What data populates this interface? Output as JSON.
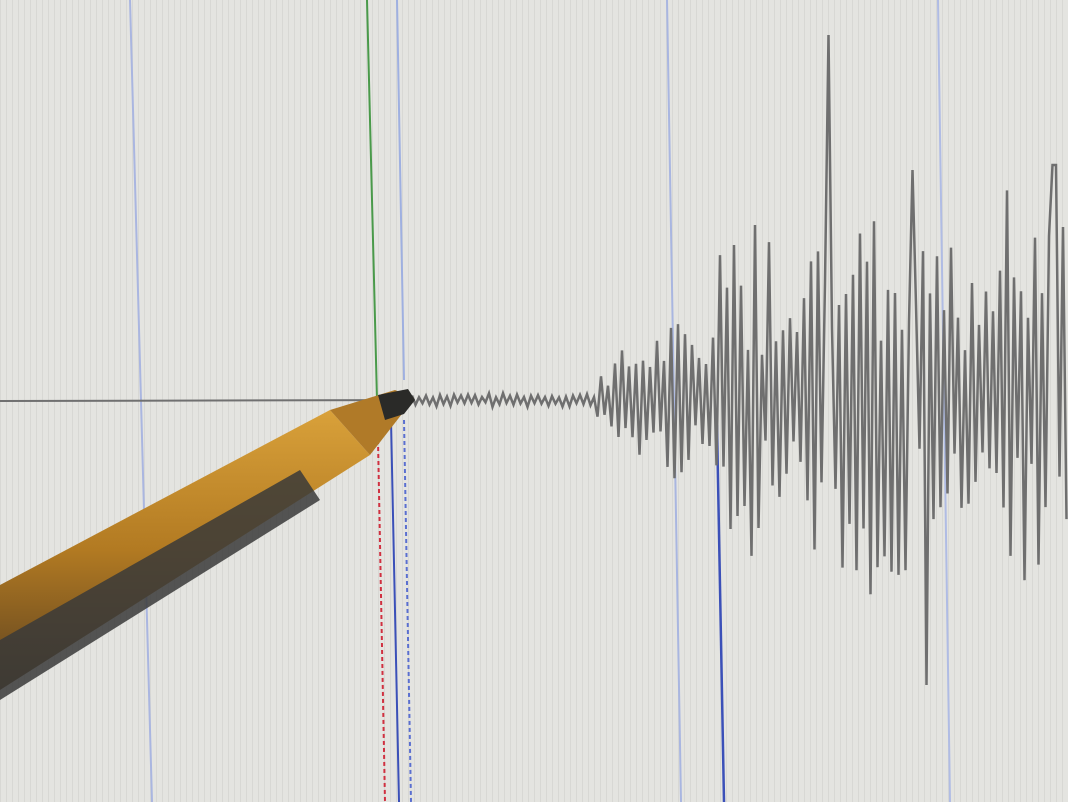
{
  "scene": {
    "subject": "seismograph-screen-with-pencil",
    "colors": {
      "background": "#e3e3df",
      "stripe": "#d6d6d2",
      "trace": "#6f6f6f",
      "baseline": "#707070",
      "marker_light_blue": "#a9b6e0",
      "marker_blue": "#3b50b8",
      "marker_green": "#4a9a4a",
      "marker_red": "#d03040",
      "pencil_body": "#c8902a",
      "pencil_shadow": "#3a3a38",
      "pencil_tip": "#2a2a28"
    }
  }
}
